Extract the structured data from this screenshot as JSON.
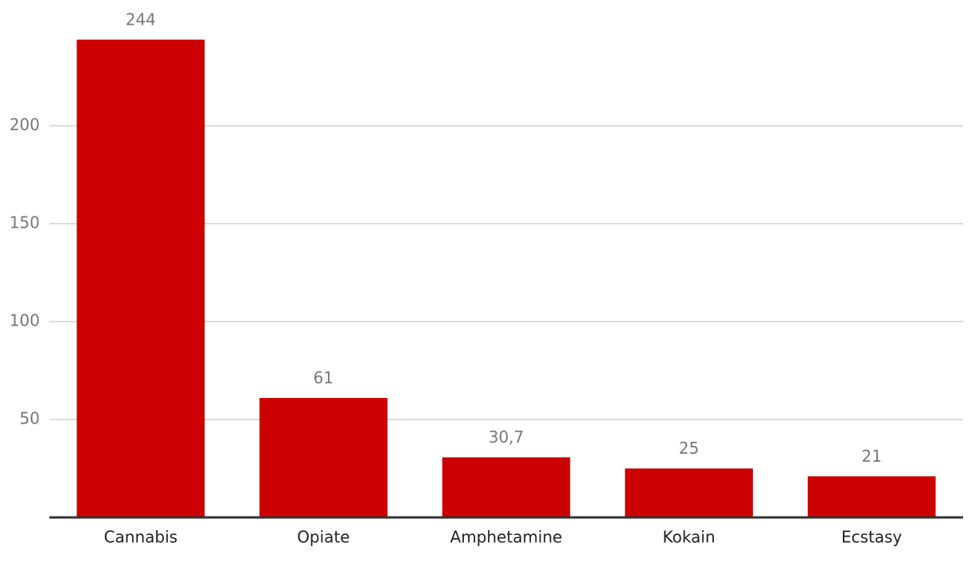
{
  "chart_data": {
    "type": "bar",
    "categories": [
      "Cannabis",
      "Opiate",
      "Amphetamine",
      "Kokain",
      "Ecstasy"
    ],
    "values": [
      244,
      61,
      30.7,
      25,
      21
    ],
    "value_labels": [
      "244",
      "61",
      "30,7",
      "25",
      "21"
    ],
    "color": "#cc0000",
    "ylim": [
      0,
      250
    ],
    "yticks": [
      50,
      100,
      150,
      200
    ],
    "grid": true
  }
}
